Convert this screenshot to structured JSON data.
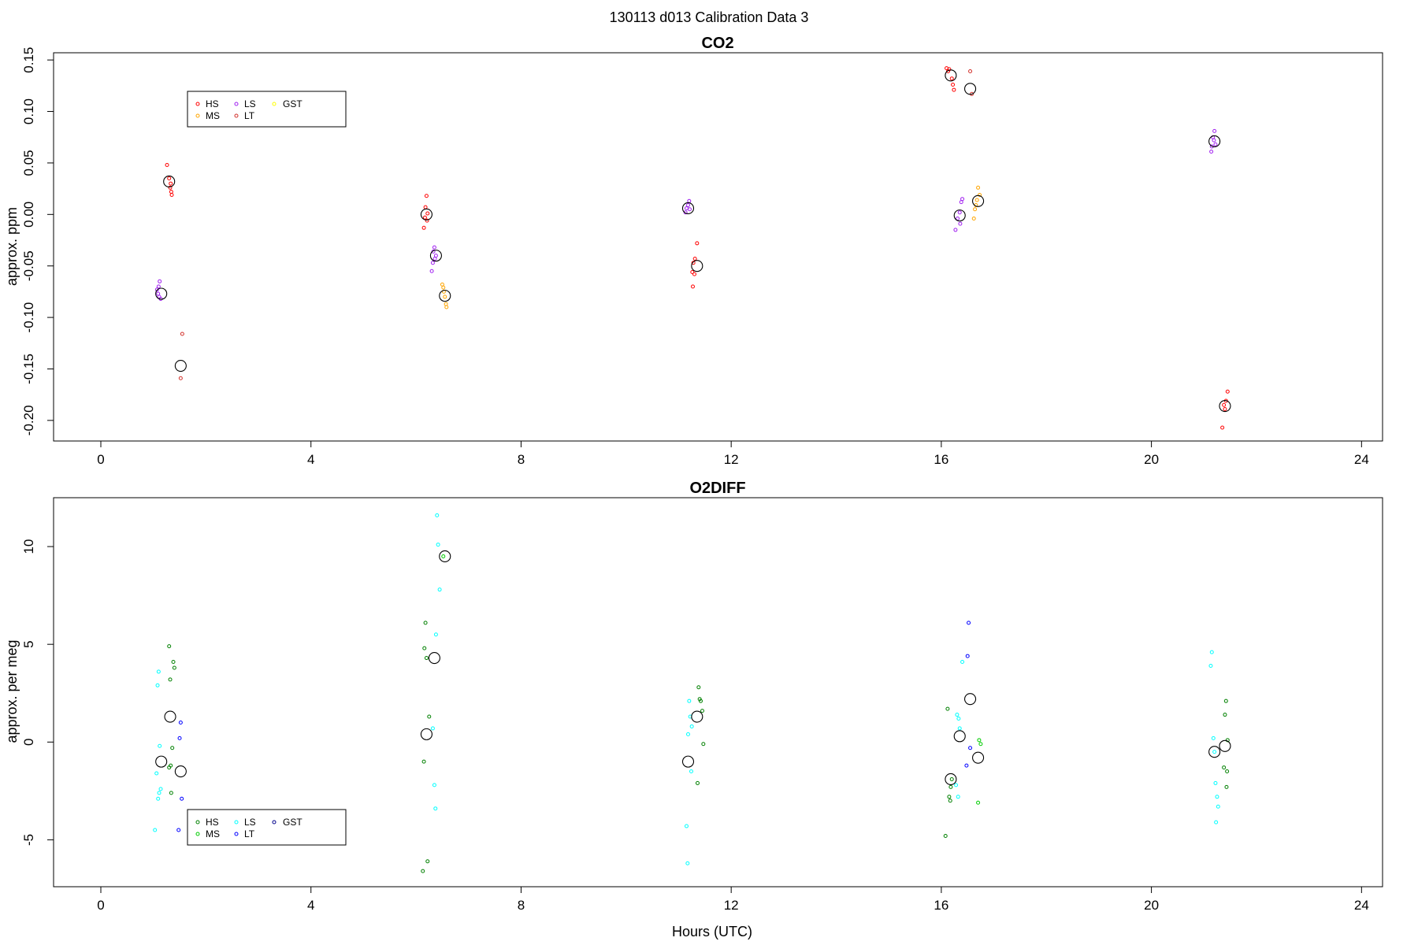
{
  "figure": {
    "main_title": "130113   d013   Calibration Data 3",
    "xlabel": "Hours (UTC)"
  },
  "legend_labels": [
    "HS",
    "MS",
    "LS",
    "LT",
    "GST"
  ],
  "chart_data": [
    {
      "type": "scatter",
      "title": "CO2",
      "xlabel": "",
      "ylabel": "approx. ppm",
      "xlim": [
        -0.9,
        24.4
      ],
      "ylim": [
        -0.22,
        0.157
      ],
      "xticks": [
        0,
        4,
        8,
        12,
        16,
        20,
        24
      ],
      "yticks": [
        -0.2,
        -0.15,
        -0.1,
        -0.05,
        0.0,
        0.05,
        0.1,
        0.15
      ],
      "ytick_labels": [
        "-0.20",
        "-0.15",
        "-0.10",
        "-0.05",
        "0.00",
        "0.05",
        "0.10",
        "0.15"
      ],
      "legend_position": "top-left",
      "series": [
        {
          "name": "HS",
          "color": "#ff0000",
          "points": [
            [
              1.26,
              0.048
            ],
            [
              1.3,
              0.035
            ],
            [
              1.33,
              0.03
            ],
            [
              1.32,
              0.026
            ],
            [
              1.34,
              0.022
            ],
            [
              1.35,
              0.019
            ],
            [
              6.2,
              0.018
            ],
            [
              6.18,
              0.007
            ],
            [
              6.22,
              0.001
            ],
            [
              6.17,
              -0.003
            ],
            [
              6.21,
              -0.006
            ],
            [
              6.15,
              -0.013
            ],
            [
              16.1,
              0.142
            ],
            [
              16.15,
              0.141
            ],
            [
              16.13,
              0.139
            ],
            [
              16.2,
              0.132
            ],
            [
              16.22,
              0.126
            ],
            [
              16.24,
              0.121
            ],
            [
              11.35,
              -0.028
            ],
            [
              11.31,
              -0.043
            ],
            [
              11.28,
              -0.047
            ],
            [
              11.26,
              -0.056
            ],
            [
              11.3,
              -0.058
            ],
            [
              11.27,
              -0.07
            ],
            [
              21.45,
              -0.172
            ],
            [
              21.42,
              -0.181
            ],
            [
              21.38,
              -0.185
            ],
            [
              21.4,
              -0.189
            ],
            [
              21.35,
              -0.207
            ]
          ]
        },
        {
          "name": "MS",
          "color": "#ffa500",
          "points": [
            [
              6.5,
              -0.068
            ],
            [
              6.52,
              -0.071
            ],
            [
              6.53,
              -0.075
            ],
            [
              6.55,
              -0.08
            ],
            [
              6.57,
              -0.087
            ],
            [
              6.58,
              -0.09
            ],
            [
              16.7,
              0.026
            ],
            [
              16.73,
              0.019
            ],
            [
              16.68,
              0.014
            ],
            [
              16.66,
              0.009
            ],
            [
              16.64,
              0.005
            ],
            [
              16.62,
              -0.004
            ]
          ]
        },
        {
          "name": "LS",
          "color": "#a020f0",
          "points": [
            [
              1.12,
              -0.065
            ],
            [
              1.1,
              -0.07
            ],
            [
              1.07,
              -0.073
            ],
            [
              1.09,
              -0.077
            ],
            [
              1.11,
              -0.08
            ],
            [
              1.14,
              -0.082
            ],
            [
              6.35,
              -0.032
            ],
            [
              6.33,
              -0.036
            ],
            [
              6.38,
              -0.04
            ],
            [
              6.36,
              -0.043
            ],
            [
              6.32,
              -0.047
            ],
            [
              6.3,
              -0.055
            ],
            [
              11.2,
              0.013
            ],
            [
              11.18,
              0.009
            ],
            [
              11.15,
              0.006
            ],
            [
              11.21,
              0.005
            ],
            [
              11.13,
              0.002
            ],
            [
              16.4,
              0.015
            ],
            [
              16.38,
              0.012
            ],
            [
              16.35,
              0.002
            ],
            [
              16.31,
              -0.004
            ],
            [
              16.36,
              -0.009
            ],
            [
              16.27,
              -0.015
            ],
            [
              21.2,
              0.081
            ],
            [
              21.17,
              0.075
            ],
            [
              21.19,
              0.072
            ],
            [
              21.22,
              0.068
            ],
            [
              21.15,
              0.066
            ],
            [
              21.14,
              0.061
            ]
          ]
        },
        {
          "name": "LT",
          "color": "#d2302a",
          "points": [
            [
              1.55,
              -0.116
            ],
            [
              1.52,
              -0.159
            ],
            [
              16.55,
              0.139
            ],
            [
              16.58,
              0.117
            ]
          ]
        },
        {
          "name": "GST",
          "color": "#ffff00",
          "points": []
        },
        {
          "name": "",
          "color": "#000000",
          "marker": "mean",
          "points": [
            [
              1.15,
              -0.077
            ],
            [
              1.3,
              0.032
            ],
            [
              1.52,
              -0.147
            ],
            [
              6.2,
              0.0
            ],
            [
              6.38,
              -0.04
            ],
            [
              6.55,
              -0.079
            ],
            [
              11.18,
              0.006
            ],
            [
              11.35,
              -0.05
            ],
            [
              16.18,
              0.135
            ],
            [
              16.35,
              -0.001
            ],
            [
              16.55,
              0.122
            ],
            [
              16.7,
              0.013
            ],
            [
              21.2,
              0.071
            ],
            [
              21.4,
              -0.186
            ]
          ]
        }
      ]
    },
    {
      "type": "scatter",
      "title": "O2DIFF",
      "xlabel": "Hours (UTC)",
      "ylabel": "approx. per meg",
      "xlim": [
        -0.9,
        24.4
      ],
      "ylim": [
        -7.4,
        12.5
      ],
      "xticks": [
        0,
        4,
        8,
        12,
        16,
        20,
        24
      ],
      "yticks": [
        -5,
        0,
        5,
        10
      ],
      "ytick_labels": [
        "-5",
        "0",
        "5",
        "10"
      ],
      "legend_position": "bottom-left",
      "series": [
        {
          "name": "HS",
          "color": "#008000",
          "points": [
            [
              1.3,
              4.9
            ],
            [
              1.38,
              4.1
            ],
            [
              1.4,
              3.8
            ],
            [
              1.32,
              3.2
            ],
            [
              1.36,
              -0.3
            ],
            [
              1.33,
              -1.2
            ],
            [
              1.3,
              -1.3
            ],
            [
              1.34,
              -2.6
            ],
            [
              6.18,
              6.1
            ],
            [
              6.16,
              4.8
            ],
            [
              6.2,
              4.3
            ],
            [
              6.25,
              1.3
            ],
            [
              6.15,
              -1.0
            ],
            [
              6.13,
              -6.6
            ],
            [
              6.22,
              -6.1
            ],
            [
              11.38,
              2.8
            ],
            [
              11.42,
              2.1
            ],
            [
              11.4,
              2.2
            ],
            [
              11.45,
              1.6
            ],
            [
              11.47,
              -0.1
            ],
            [
              11.36,
              -2.1
            ],
            [
              16.12,
              1.7
            ],
            [
              16.2,
              -1.9
            ],
            [
              16.18,
              -2.3
            ],
            [
              16.15,
              -2.8
            ],
            [
              16.17,
              -3.0
            ],
            [
              16.08,
              -4.8
            ],
            [
              21.42,
              2.1
            ],
            [
              21.4,
              1.4
            ],
            [
              21.45,
              0.1
            ],
            [
              21.38,
              -1.3
            ],
            [
              21.44,
              -1.5
            ],
            [
              21.43,
              -2.3
            ]
          ]
        },
        {
          "name": "MS",
          "color": "#00cc00",
          "points": [
            [
              6.52,
              9.5
            ],
            [
              16.72,
              0.1
            ],
            [
              16.75,
              -0.1
            ],
            [
              16.7,
              -3.1
            ]
          ]
        },
        {
          "name": "LS",
          "color": "#00ffff",
          "points": [
            [
              1.1,
              3.6
            ],
            [
              1.08,
              2.9
            ],
            [
              1.12,
              -0.2
            ],
            [
              1.06,
              -1.6
            ],
            [
              1.14,
              -2.4
            ],
            [
              1.11,
              -2.6
            ],
            [
              1.09,
              -2.9
            ],
            [
              1.03,
              -4.5
            ],
            [
              6.4,
              11.6
            ],
            [
              6.42,
              10.1
            ],
            [
              6.45,
              7.8
            ],
            [
              6.38,
              5.5
            ],
            [
              6.32,
              0.7
            ],
            [
              6.35,
              -2.2
            ],
            [
              6.37,
              -3.4
            ],
            [
              11.2,
              2.1
            ],
            [
              11.22,
              1.3
            ],
            [
              11.18,
              0.4
            ],
            [
              11.25,
              0.8
            ],
            [
              11.24,
              -1.5
            ],
            [
              11.15,
              -4.3
            ],
            [
              11.17,
              -6.2
            ],
            [
              16.3,
              1.4
            ],
            [
              16.33,
              1.2
            ],
            [
              16.35,
              0.7
            ],
            [
              16.28,
              -2.2
            ],
            [
              16.32,
              -2.8
            ],
            [
              16.4,
              4.1
            ],
            [
              21.15,
              4.6
            ],
            [
              21.13,
              3.9
            ],
            [
              21.18,
              0.2
            ],
            [
              21.2,
              -0.5
            ],
            [
              21.22,
              -2.1
            ],
            [
              21.25,
              -2.8
            ],
            [
              21.27,
              -3.3
            ],
            [
              21.23,
              -4.1
            ]
          ]
        },
        {
          "name": "LT",
          "color": "#0000ff",
          "points": [
            [
              1.52,
              1.0
            ],
            [
              1.5,
              0.2
            ],
            [
              1.54,
              -2.9
            ],
            [
              1.48,
              -4.5
            ],
            [
              16.52,
              6.1
            ],
            [
              16.5,
              4.4
            ],
            [
              16.55,
              -0.3
            ],
            [
              16.48,
              -1.2
            ]
          ]
        },
        {
          "name": "GST",
          "color": "#00008b",
          "points": []
        },
        {
          "name": "",
          "color": "#000000",
          "marker": "mean",
          "points": [
            [
              1.15,
              -1.0
            ],
            [
              1.32,
              1.3
            ],
            [
              1.52,
              -1.5
            ],
            [
              6.2,
              0.4
            ],
            [
              6.35,
              4.3
            ],
            [
              6.55,
              9.5
            ],
            [
              11.18,
              -1.0
            ],
            [
              11.35,
              1.3
            ],
            [
              16.18,
              -1.9
            ],
            [
              16.35,
              0.3
            ],
            [
              16.55,
              2.2
            ],
            [
              16.7,
              -0.8
            ],
            [
              21.2,
              -0.5
            ],
            [
              21.4,
              -0.2
            ]
          ]
        }
      ]
    }
  ]
}
